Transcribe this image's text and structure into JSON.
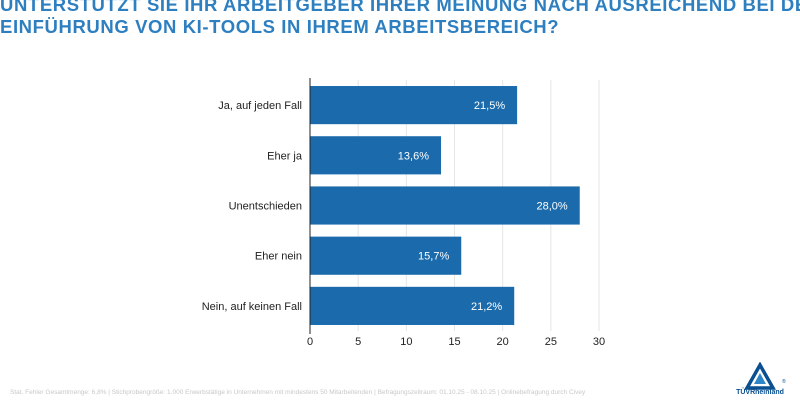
{
  "title": {
    "line1": "UNTERSTÜTZT SIE IHR ARBEITGEBER IHRER MEINUNG NACH AUSREICHEND BEI DER",
    "line2": "EINFÜHRUNG VON KI-TOOLS IN IHREM ARBEITSBEREICH?"
  },
  "footnote": "Stat. Fehler Gesamtmenge: 6,8% | Stichprobengröße: 1.000 Erwerbstätige in Unternehmen mit mindestens 50 Mitarbeitenden | Befragungszeitraum: 01.10.25 - 08.10.25 | Onlinebefragung durch Civey",
  "logo": {
    "name": "TÜVRheinland",
    "mark": "®"
  },
  "colors": {
    "bar": "#1a6aac",
    "title": "#2e7fc0",
    "grid": "#e6e6e6",
    "axis": "#222222"
  },
  "chart_data": {
    "type": "bar",
    "orientation": "horizontal",
    "categories": [
      "Ja, auf jeden Fall",
      "Eher ja",
      "Unentschieden",
      "Eher nein",
      "Nein, auf keinen Fall"
    ],
    "values": [
      21.5,
      13.6,
      28.0,
      15.7,
      21.2
    ],
    "value_labels": [
      "21,5%",
      "13,6%",
      "28,0%",
      "15,7%",
      "21,2%"
    ],
    "xlim": [
      0,
      30
    ],
    "xticks": [
      0,
      5,
      10,
      15,
      20,
      25,
      30
    ],
    "xlabel": "",
    "ylabel": "",
    "grid": true
  }
}
